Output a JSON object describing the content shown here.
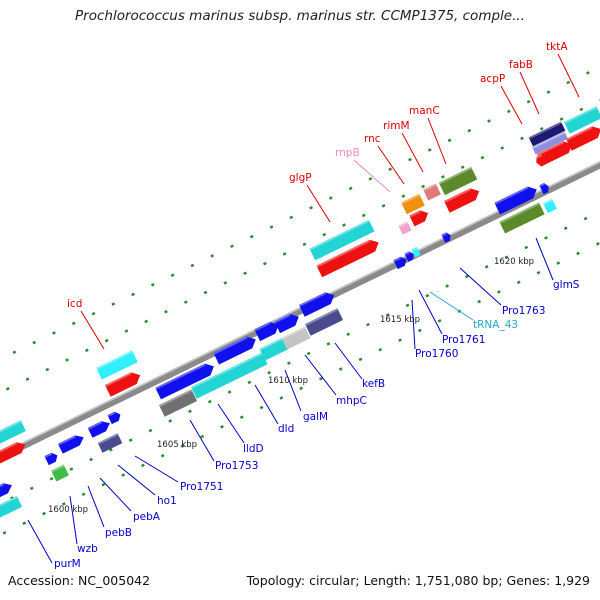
{
  "title": "Prochlorococcus marinus subsp. marinus str. CCMP1375, comple...",
  "footer": {
    "accession": "Accession: NC_005042",
    "stats": "Topology: circular; Length: 1,751,080 bp; Genes: 1,929"
  },
  "colors": {
    "backbone": "#8a8a8a",
    "tick": "#2e8b2e",
    "label_default": "#0000cc",
    "label_red": "#dd0000",
    "label_pink": "#ee88bb",
    "label_cyan": "#22aacc"
  },
  "kbp_ticks": [
    "1600 kbp",
    "1605 kbp",
    "1610 kbp",
    "1615 kbp",
    "1620 kbp"
  ],
  "gene_labels": [
    {
      "text": "purM",
      "color": "blue"
    },
    {
      "text": "wzb",
      "color": "blue"
    },
    {
      "text": "pebB",
      "color": "blue"
    },
    {
      "text": "pebA",
      "color": "blue"
    },
    {
      "text": "ho1",
      "color": "blue"
    },
    {
      "text": "Pro1751",
      "color": "blue"
    },
    {
      "text": "Pro1753",
      "color": "blue"
    },
    {
      "text": "lldD",
      "color": "blue"
    },
    {
      "text": "dld",
      "color": "blue"
    },
    {
      "text": "galM",
      "color": "blue"
    },
    {
      "text": "mhpC",
      "color": "blue"
    },
    {
      "text": "kefB",
      "color": "blue"
    },
    {
      "text": "Pro1760",
      "color": "blue"
    },
    {
      "text": "Pro1761",
      "color": "blue"
    },
    {
      "text": "tRNA_43",
      "color": "cyan"
    },
    {
      "text": "Pro1763",
      "color": "blue"
    },
    {
      "text": "glmS",
      "color": "blue"
    },
    {
      "text": "icd",
      "color": "red"
    },
    {
      "text": "glgP",
      "color": "red"
    },
    {
      "text": "rnpB",
      "color": "pink"
    },
    {
      "text": "rnc",
      "color": "red"
    },
    {
      "text": "rimM",
      "color": "red"
    },
    {
      "text": "manC",
      "color": "red"
    },
    {
      "text": "acpP",
      "color": "red"
    },
    {
      "text": "fabB",
      "color": "red"
    },
    {
      "text": "tktA",
      "color": "red"
    }
  ]
}
